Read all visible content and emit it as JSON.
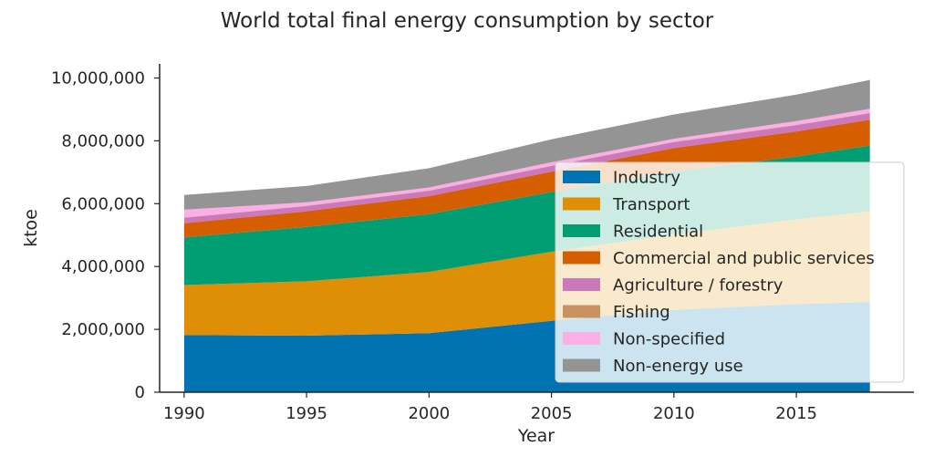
{
  "chart_data": {
    "type": "area",
    "stacked": true,
    "title": "World total final energy consumption by sector",
    "xlabel": "Year",
    "ylabel": "ktoe",
    "x": [
      1990,
      1995,
      2000,
      2005,
      2010,
      2015,
      2018
    ],
    "x_ticks": [
      "1990",
      "1995",
      "2000",
      "2005",
      "2010",
      "2015"
    ],
    "x_tick_values": [
      1990,
      1995,
      2000,
      2005,
      2010,
      2015
    ],
    "xlim": [
      1989,
      2019.8
    ],
    "ylim": [
      0,
      10450000
    ],
    "y_ticks": [
      "0",
      "2,000,000",
      "4,000,000",
      "6,000,000",
      "8,000,000",
      "10,000,000"
    ],
    "y_tick_values": [
      0,
      2000000,
      4000000,
      6000000,
      8000000,
      10000000
    ],
    "grid": false,
    "legend_position": "center-right",
    "series": [
      {
        "name": "Industry",
        "color": "#0173b2",
        "values": [
          1820000,
          1800000,
          1880000,
          2270000,
          2620000,
          2800000,
          2870000
        ]
      },
      {
        "name": "Transport",
        "color": "#de8f05",
        "values": [
          1590000,
          1730000,
          1950000,
          2200000,
          2400000,
          2700000,
          2880000
        ]
      },
      {
        "name": "Residential",
        "color": "#029e73",
        "values": [
          1520000,
          1730000,
          1840000,
          1900000,
          2000000,
          2000000,
          2100000
        ]
      },
      {
        "name": "Commercial and public services",
        "color": "#d55e00",
        "values": [
          450000,
          500000,
          570000,
          650000,
          750000,
          800000,
          820000
        ]
      },
      {
        "name": "Agriculture / forestry",
        "color": "#cc78bc",
        "values": [
          170000,
          165000,
          170000,
          180000,
          190000,
          200000,
          210000
        ]
      },
      {
        "name": "Fishing",
        "color": "#ca9161",
        "values": [
          8000,
          8000,
          8000,
          8000,
          8000,
          8000,
          8000
        ]
      },
      {
        "name": "Non-specified",
        "color": "#fbafe4",
        "values": [
          250000,
          110000,
          100000,
          110000,
          100000,
          120000,
          130000
        ]
      },
      {
        "name": "Non-energy use",
        "color": "#949494",
        "values": [
          470000,
          520000,
          610000,
          730000,
          770000,
          840000,
          920000
        ]
      }
    ]
  }
}
